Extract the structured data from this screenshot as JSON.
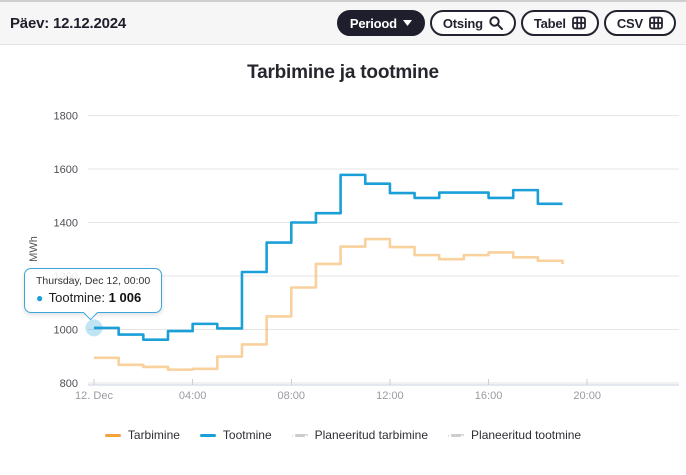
{
  "header": {
    "date_label": "Päev:",
    "date_value": "12.12.2024",
    "buttons": {
      "periood": "Periood",
      "otsing": "Otsing",
      "tabel": "Tabel",
      "csv": "CSV"
    }
  },
  "chart_data": {
    "type": "line",
    "step": "left",
    "title": "Tarbimine ja tootmine",
    "xlabel": "",
    "ylabel": "MWh",
    "ylim": [
      800,
      1800
    ],
    "yticks": [
      800,
      1000,
      1200,
      1400,
      1600,
      1800
    ],
    "grid": "horizontal",
    "legend_position": "bottom",
    "x_date": "12.12.2024",
    "hours": [
      "00:00",
      "01:00",
      "02:00",
      "03:00",
      "04:00",
      "05:00",
      "06:00",
      "07:00",
      "08:00",
      "09:00",
      "10:00",
      "11:00",
      "12:00",
      "13:00",
      "14:00",
      "15:00",
      "16:00",
      "17:00",
      "18:00",
      "19:00"
    ],
    "xticks": [
      {
        "hour": 0,
        "label": "12. Dec"
      },
      {
        "hour": 4,
        "label": "04:00"
      },
      {
        "hour": 8,
        "label": "08:00"
      },
      {
        "hour": 12,
        "label": "12:00"
      },
      {
        "hour": 16,
        "label": "16:00"
      },
      {
        "hour": 20,
        "label": "20:00"
      }
    ],
    "series": [
      {
        "name": "Tarbimine",
        "color": "#f2a33c",
        "dashed": false,
        "dimmed": true,
        "values": [
          894,
          868,
          860,
          850,
          853,
          899,
          944,
          1049,
          1157,
          1245,
          1310,
          1338,
          1308,
          1278,
          1263,
          1278,
          1288,
          1270,
          1257,
          1245
        ]
      },
      {
        "name": "Tootmine",
        "color": "#1a9fd8",
        "dashed": false,
        "dimmed": false,
        "values": [
          1006,
          981,
          962,
          994,
          1021,
          1004,
          1215,
          1325,
          1400,
          1435,
          1578,
          1545,
          1510,
          1492,
          1512,
          1512,
          1492,
          1521,
          1470,
          1470
        ]
      },
      {
        "name": "Planeeritud tarbimine",
        "color": "#cccccc",
        "dashed": true,
        "dimmed": false,
        "values": []
      },
      {
        "name": "Planeeritud tootmine",
        "color": "#cccccc",
        "dashed": true,
        "dimmed": false,
        "values": []
      }
    ]
  },
  "tooltip": {
    "header": "Thursday, Dec 12, 00:00",
    "bullet": "●",
    "series_label": "Tootmine:",
    "value": "1 006",
    "point_hour": 0,
    "point_value": 1006
  }
}
